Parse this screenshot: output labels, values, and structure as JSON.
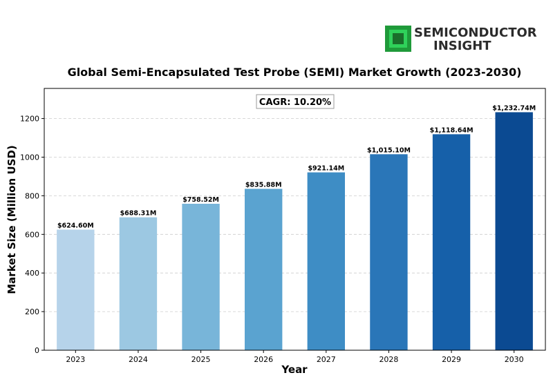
{
  "brand": {
    "line1": "SEMICONDUCTOR",
    "line2": "INSIGHT"
  },
  "chart_data": {
    "type": "bar",
    "title": "Global Semi-Encapsulated Test Probe (SEMI) Market Growth (2023-2030)",
    "xlabel": "Year",
    "ylabel": "Market Size (Million USD)",
    "categories": [
      "2023",
      "2024",
      "2025",
      "2026",
      "2027",
      "2028",
      "2029",
      "2030"
    ],
    "values": [
      624.6,
      688.31,
      758.52,
      835.88,
      921.14,
      1015.1,
      1118.64,
      1232.74
    ],
    "value_labels": [
      "$624.60M",
      "$688.31M",
      "$758.52M",
      "$835.88M",
      "$921.14M",
      "$1,015.10M",
      "$1,118.64M",
      "$1,232.74M"
    ],
    "colors": [
      "#b6d3ea",
      "#9cc8e2",
      "#78b5d9",
      "#5aa3d0",
      "#3e8dc5",
      "#2a76b8",
      "#1660a9",
      "#0b4a92"
    ],
    "yticks": [
      0,
      200,
      400,
      600,
      800,
      1000,
      1200
    ],
    "ylim": [
      0,
      1356
    ],
    "grid": true,
    "annotation": "CAGR: 10.20%"
  }
}
